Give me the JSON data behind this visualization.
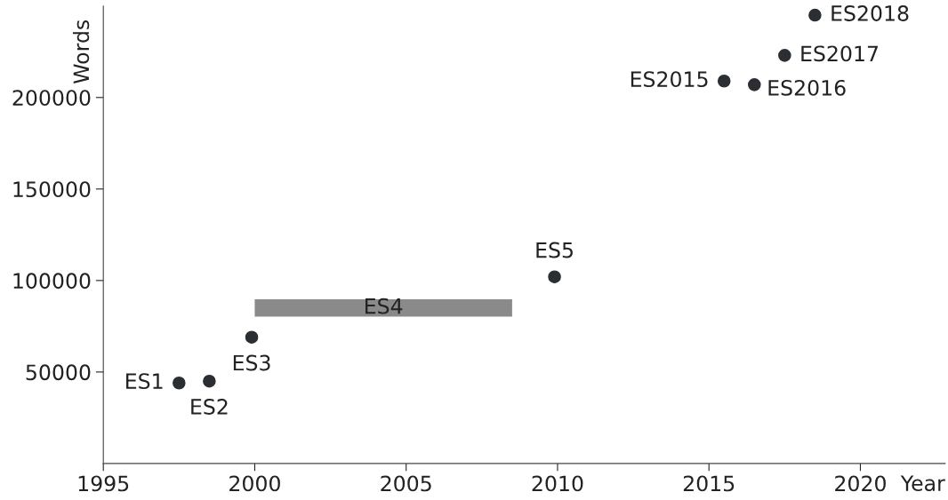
{
  "chart_data": {
    "type": "scatter",
    "xlabel": "Year",
    "ylabel": "Words",
    "xlim": [
      1995,
      2022.8
    ],
    "xticks": [
      1995,
      2000,
      2005,
      2010,
      2015,
      2020
    ],
    "ylim": [
      0,
      250000
    ],
    "yticks": [
      50000,
      100000,
      150000,
      200000
    ],
    "grid": false,
    "legend": false,
    "series": [
      {
        "marker": "circle",
        "color": "#2b2f33",
        "x": [
          1997.5,
          1998.5,
          1999.9,
          2009.9,
          2015.5,
          2016.5,
          2017.5,
          2018.5
        ],
        "values": [
          44000,
          45000,
          69000,
          102000,
          209000,
          207000,
          223000,
          245000
        ]
      },
      {
        "type": "line",
        "color": "#8a8a8a",
        "x": [
          2000,
          2008.5
        ],
        "values": [
          85000,
          85000
        ]
      }
    ],
    "annotations": [
      {
        "text": "ES1",
        "x": 1997.5,
        "y": 44000
      },
      {
        "text": "ES2",
        "x": 1998.5,
        "y": 45000
      },
      {
        "text": "ES3",
        "x": 1999.9,
        "y": 69000
      },
      {
        "text": "ES4",
        "x": 2004.25,
        "y": 85000
      },
      {
        "text": "ES5",
        "x": 2009.9,
        "y": 102000
      },
      {
        "text": "ES2015",
        "x": 2015.5,
        "y": 209000
      },
      {
        "text": "ES2016",
        "x": 2016.5,
        "y": 207000
      },
      {
        "text": "ES2017",
        "x": 2017.5,
        "y": 223000
      },
      {
        "text": "ES2018",
        "x": 2018.5,
        "y": 245000
      }
    ]
  }
}
